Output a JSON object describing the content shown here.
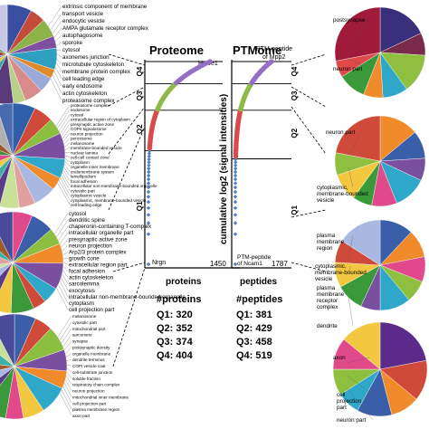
{
  "chart_data": [
    {
      "type": "scatter",
      "title": "Proteome",
      "xlabel": "proteins",
      "ylabel": "cumulative log2 (signal intensities)",
      "x_start_label": "Nrgn",
      "x_end_label": "1450",
      "top_label": "Huwe1",
      "quartile_labels": [
        "Q1",
        "Q2",
        "Q3",
        "Q4"
      ],
      "quartile_colors": [
        "#4e7fc6",
        "#d94a4a",
        "#8fb84a",
        "#9370c4"
      ],
      "quartile_bounds": [
        0,
        0.56,
        0.76,
        0.89,
        1.0
      ],
      "summary_title": "#proteins",
      "summary": [
        {
          "label": "Q1",
          "value": 320
        },
        {
          "label": "Q2",
          "value": 352
        },
        {
          "label": "Q3",
          "value": 374
        },
        {
          "label": "Q4",
          "value": 404
        }
      ]
    },
    {
      "type": "scatter",
      "title": "PTMome",
      "xlabel": "peptides",
      "ylabel": "cumulative log2 (signal intensities)",
      "x_start_label": "PTM-peptide of Ncam1",
      "x_end_label": "1787",
      "top_label": "PTM-peptide of Mpp2",
      "quartile_labels": [
        "Q1",
        "Q2",
        "Q3",
        "Q4"
      ],
      "quartile_colors": [
        "#4e7fc6",
        "#d94a4a",
        "#8fb84a",
        "#9370c4"
      ],
      "quartile_bounds": [
        0,
        0.52,
        0.76,
        0.89,
        1.0
      ],
      "summary_title": "#peptides",
      "summary": [
        {
          "label": "Q1",
          "value": 381
        },
        {
          "label": "Q2",
          "value": 429
        },
        {
          "label": "Q3",
          "value": 458
        },
        {
          "label": "Q4",
          "value": 519
        }
      ]
    }
  ],
  "left_pies": [
    {
      "slices": [
        8,
        5,
        6,
        4,
        7,
        3,
        5,
        6,
        4,
        9,
        5,
        6,
        4,
        8,
        5,
        15
      ],
      "colors": [
        "#3b4fa0",
        "#c44a3a",
        "#8db24a",
        "#7e4f9e",
        "#2f9fc0",
        "#e08a2e",
        "#9aa9d6",
        "#d98a8a",
        "#b8d08a",
        "#5a3a7a",
        "#3aa6a0",
        "#f0c040",
        "#6a8ac8",
        "#a83a3a",
        "#60a060",
        "#c8c8e8"
      ],
      "labels": [
        "extrinsic component of membrane",
        "transport vesicle",
        "endocytic vesicle",
        "AMPA glutamate receptor complex",
        "autophagosome",
        "sporoke",
        "cytosol",
        "axonemes junction",
        "microtubule cytoskeleton",
        "membrane protein complex",
        "cell leading edge",
        "early endosome",
        "actin cytoskeleton",
        "proteasome complex"
      ]
    },
    {
      "slices": [
        7,
        6,
        5,
        8,
        6,
        4,
        7,
        5,
        6,
        4,
        5,
        6,
        7,
        5,
        6,
        8,
        5
      ],
      "colors": [
        "#2f5fa8",
        "#d04a3a",
        "#8cbf3f",
        "#7b4fa0",
        "#2fa7c8",
        "#f08a2a",
        "#a8b8e0",
        "#e0a0a0",
        "#c8e098",
        "#5b3b8b",
        "#3fb0a8",
        "#f3c73f",
        "#d84f8f",
        "#3a8f3a",
        "#9a5a2a",
        "#b0b0b0",
        "#4a6ab0"
      ],
      "labels": [
        "proteasome complex",
        "endosome",
        "cytosol",
        "extracellular region of cytoplasm",
        "presynaptic active zone",
        "COPII signalosome",
        "neuron projection",
        "peroxisome",
        "melanosome",
        "membrane-bounded vesicle",
        "nuclear lamina",
        "cell-cell contact zone",
        "cytoplasm",
        "organelle inner membrane",
        "endomembrane system",
        "lamellipodium",
        "focal adhesion",
        "intracellular non-membrane-bounded organelle",
        "cytosolic part",
        "cytoplasmic vesicle",
        "cytoplasmic, membrane-bounded vesicle",
        "cell leading edge"
      ]
    },
    {
      "slices": [
        6,
        7,
        5,
        6,
        8,
        5,
        4,
        7,
        6,
        5,
        6,
        4,
        8,
        5,
        6,
        7
      ],
      "colors": [
        "#e04a8a",
        "#3a5fa8",
        "#8cbf3f",
        "#f08a2a",
        "#7b4fa0",
        "#2fa7c8",
        "#d04a3a",
        "#3a9a3a",
        "#f3c73f",
        "#5b3b8b",
        "#a8b8e0",
        "#c8e098",
        "#e0a0a0",
        "#3fb0a8",
        "#9a5a2a",
        "#4a4a9a"
      ],
      "labels": [
        "cytosol",
        "dendritic spine",
        "chaperonin-containing T-complex",
        "intracellular organelle part",
        "presynaptic active zone",
        "neuron projection",
        "Arp2/3 protein complex",
        "growth cone",
        "extracellular region part",
        "focal adhesion",
        "actin cytoskeleton",
        "sarcolemma",
        "exocytosis",
        "intracellular non-membrane-bounded organelle",
        "cytoplasm",
        "cell projection part"
      ]
    },
    {
      "slices": [
        6,
        5,
        7,
        6,
        5,
        8,
        6,
        5,
        7,
        4,
        6,
        5,
        8,
        6,
        7
      ],
      "colors": [
        "#3a5fa8",
        "#d04a3a",
        "#8cbf3f",
        "#7b4fa0",
        "#f08a2a",
        "#2fa7c8",
        "#f3c73f",
        "#e04a8a",
        "#3a9a3a",
        "#5b3b8b",
        "#a8b8e0",
        "#9a5a2a",
        "#3fb0a8",
        "#c8e098",
        "#4a4a9a"
      ],
      "labels": [
        "melanosome",
        "cytosolic part",
        "mitochondrial part",
        "sarcomere",
        "synapse",
        "postsynaptic density",
        "organelle membrane",
        "dendrite terminus",
        "COPI vesicle coat",
        "cell-substrate junction",
        "soluble fraction",
        "respiratory chain complex",
        "neuron projection",
        "mitochondrial inner membrane",
        "cell projection part",
        "plasma membrane region",
        "axon part"
      ]
    }
  ],
  "right_pies": [
    {
      "slices": [
        18,
        8,
        14,
        9,
        7,
        10,
        6,
        28
      ],
      "colors": [
        "#3a2f7a",
        "#7a2a4a",
        "#8fbf3f",
        "#2fa7c8",
        "#f08a2a",
        "#3a9a3a",
        "#e04a4a",
        "#a01a3a"
      ],
      "labels": [
        "postsynapse",
        "neuron part"
      ]
    },
    {
      "slices": [
        14,
        10,
        8,
        12,
        9,
        7,
        10,
        8,
        22
      ],
      "colors": [
        "#f08a2a",
        "#3a5fa8",
        "#7b4fa0",
        "#2fa7c8",
        "#e04a8a",
        "#3a9a3a",
        "#f3c73f",
        "#8fbf3f",
        "#d04a3a"
      ],
      "labels": [
        "neuron part",
        "cytoplasmic, membrane-bounded vesicle"
      ]
    },
    {
      "slices": [
        12,
        10,
        9,
        8,
        11,
        7,
        10,
        9,
        8,
        16
      ],
      "colors": [
        "#3a5fa8",
        "#f08a2a",
        "#e04a8a",
        "#8fbf3f",
        "#2fa7c8",
        "#7b4fa0",
        "#3a9a3a",
        "#f3c73f",
        "#d04a3a",
        "#a8b8e0"
      ],
      "labels": [
        "plasma membrane region",
        "cytoplasmic, membrane-bounded vesicle",
        "plasma membrane receptor complex",
        "dendrite"
      ]
    },
    {
      "slices": [
        22,
        14,
        10,
        12,
        8,
        9,
        11,
        14
      ],
      "colors": [
        "#5b2b8b",
        "#d04a3a",
        "#f08a2a",
        "#3a5fa8",
        "#2fa7c8",
        "#8fbf3f",
        "#e04a8a",
        "#f3c73f"
      ],
      "labels": [
        "axon",
        "cell projection part",
        "neuron part"
      ]
    }
  ]
}
